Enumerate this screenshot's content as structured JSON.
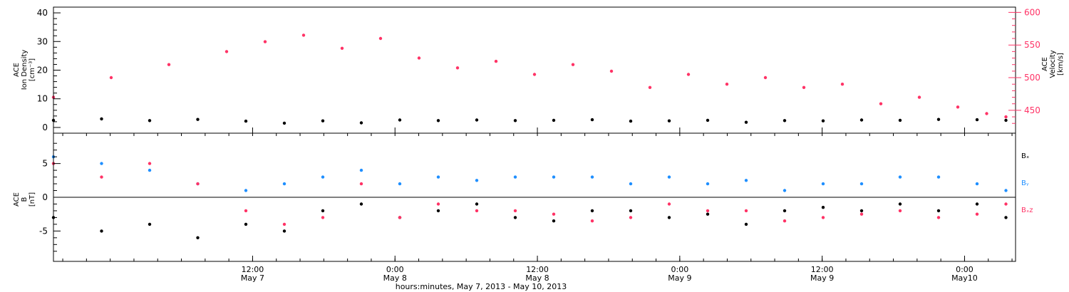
{
  "chart_data": [
    {
      "type": "scatter",
      "panel": "top",
      "ylabel": [
        "ACE",
        "Ion Density",
        "[cm⁻³]"
      ],
      "y2label": [
        "ACE",
        "Velocity",
        "[km/s]"
      ],
      "ylim": [
        -2,
        42
      ],
      "y2lim": [
        415,
        608
      ],
      "yticks": [
        0,
        10,
        20,
        30,
        40
      ],
      "y2ticks": [
        450,
        500,
        550,
        600
      ],
      "colors": {
        "density": "#000000",
        "velocity": "#ff3366"
      },
      "series": [
        {
          "axis": "left",
          "points": [
            [
              0,
              2.5
            ],
            [
              5,
              3
            ],
            [
              10,
              2.4
            ],
            [
              15,
              2.8
            ],
            [
              20,
              2.2
            ],
            [
              24,
              1.5
            ],
            [
              28,
              2.3
            ],
            [
              32,
              1.6
            ],
            [
              36,
              2.6
            ],
            [
              40,
              2.4
            ],
            [
              44,
              2.6
            ],
            [
              48,
              2.4
            ],
            [
              52,
              2.5
            ],
            [
              56,
              2.7
            ],
            [
              60,
              2.2
            ],
            [
              64,
              2.3
            ],
            [
              68,
              2.5
            ],
            [
              72,
              1.8
            ],
            [
              76,
              2.4
            ],
            [
              80,
              2.3
            ],
            [
              84,
              2.6
            ],
            [
              88,
              2.5
            ],
            [
              92,
              2.8
            ],
            [
              96,
              2.7
            ],
            [
              99,
              2.5
            ]
          ]
        },
        {
          "axis": "right",
          "points": [
            [
              0,
              470
            ],
            [
              6,
              500
            ],
            [
              12,
              520
            ],
            [
              18,
              540
            ],
            [
              22,
              555
            ],
            [
              26,
              565
            ],
            [
              30,
              545
            ],
            [
              34,
              560
            ],
            [
              38,
              530
            ],
            [
              42,
              515
            ],
            [
              46,
              525
            ],
            [
              50,
              505
            ],
            [
              54,
              520
            ],
            [
              58,
              510
            ],
            [
              62,
              485
            ],
            [
              66,
              505
            ],
            [
              70,
              490
            ],
            [
              74,
              500
            ],
            [
              78,
              485
            ],
            [
              82,
              490
            ],
            [
              86,
              460
            ],
            [
              90,
              470
            ],
            [
              94,
              455
            ],
            [
              97,
              445
            ],
            [
              99,
              440
            ]
          ]
        }
      ]
    },
    {
      "type": "scatter",
      "panel": "bottom",
      "ylabel": [
        "ACE",
        "B",
        "[nT]"
      ],
      "ylim": [
        -9.5,
        9.5
      ],
      "yticks": [
        -5,
        0,
        5
      ],
      "legend": [
        {
          "label": "Bₓ",
          "color": "#000000"
        },
        {
          "label": "Bᵧ",
          "color": "#1f8fff"
        },
        {
          "label": "Bₓz",
          "color": "#ff3366"
        }
      ],
      "series": [
        {
          "name": "Bx",
          "color": "#000000",
          "points": [
            [
              0,
              -3
            ],
            [
              5,
              -5
            ],
            [
              10,
              -4
            ],
            [
              15,
              -6
            ],
            [
              20,
              -4
            ],
            [
              24,
              -5
            ],
            [
              28,
              -2
            ],
            [
              32,
              -1
            ],
            [
              36,
              -3
            ],
            [
              40,
              -2
            ],
            [
              44,
              -1
            ],
            [
              48,
              -3
            ],
            [
              52,
              -3.5
            ],
            [
              56,
              -2
            ],
            [
              60,
              -2
            ],
            [
              64,
              -3
            ],
            [
              68,
              -2.5
            ],
            [
              72,
              -4
            ],
            [
              76,
              -2
            ],
            [
              80,
              -1.5
            ],
            [
              84,
              -2
            ],
            [
              88,
              -1
            ],
            [
              92,
              -2
            ],
            [
              96,
              -1
            ],
            [
              99,
              -3
            ]
          ]
        },
        {
          "name": "By",
          "color": "#1f8fff",
          "points": [
            [
              0,
              6
            ],
            [
              5,
              5
            ],
            [
              10,
              4
            ],
            [
              15,
              2
            ],
            [
              20,
              1
            ],
            [
              24,
              2
            ],
            [
              28,
              3
            ],
            [
              32,
              4
            ],
            [
              36,
              2
            ],
            [
              40,
              3
            ],
            [
              44,
              2.5
            ],
            [
              48,
              3
            ],
            [
              52,
              3
            ],
            [
              56,
              3
            ],
            [
              60,
              2
            ],
            [
              64,
              3
            ],
            [
              68,
              2
            ],
            [
              72,
              2.5
            ],
            [
              76,
              1
            ],
            [
              80,
              2
            ],
            [
              84,
              2
            ],
            [
              88,
              3
            ],
            [
              92,
              3
            ],
            [
              96,
              2
            ],
            [
              99,
              1
            ]
          ]
        },
        {
          "name": "Bz",
          "color": "#ff3366",
          "points": [
            [
              0,
              5
            ],
            [
              5,
              3
            ],
            [
              10,
              5
            ],
            [
              15,
              2
            ],
            [
              20,
              -2
            ],
            [
              24,
              -4
            ],
            [
              28,
              -3
            ],
            [
              32,
              2
            ],
            [
              36,
              -3
            ],
            [
              40,
              -1
            ],
            [
              44,
              -2
            ],
            [
              48,
              -2
            ],
            [
              52,
              -2.5
            ],
            [
              56,
              -3.5
            ],
            [
              60,
              -3
            ],
            [
              64,
              -1
            ],
            [
              68,
              -2
            ],
            [
              72,
              -2
            ],
            [
              76,
              -3.5
            ],
            [
              80,
              -3
            ],
            [
              84,
              -2.5
            ],
            [
              88,
              -2
            ],
            [
              92,
              -3
            ],
            [
              96,
              -2.5
            ],
            [
              99,
              -1
            ]
          ]
        }
      ]
    }
  ],
  "x_axis": {
    "xlim": [
      0,
      100
    ],
    "ticks": [
      {
        "x": 20.7,
        "time": "12:00",
        "date": "May 7"
      },
      {
        "x": 35.5,
        "time": "0:00",
        "date": "May 8"
      },
      {
        "x": 50.3,
        "time": "12:00",
        "date": "May 8"
      },
      {
        "x": 65.1,
        "time": "0:00",
        "date": "May 9"
      },
      {
        "x": 79.9,
        "time": "12:00",
        "date": "May 9"
      },
      {
        "x": 94.7,
        "time": "0:00",
        "date": "May10"
      }
    ],
    "xlabel": "hours:minutes, May  7, 2013 - May 10, 2013"
  }
}
